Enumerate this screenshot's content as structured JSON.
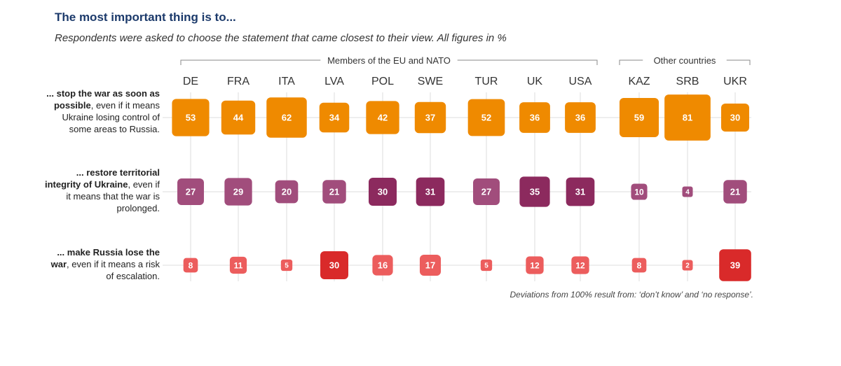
{
  "title": "The most important thing is to...",
  "subtitle": "Respondents were asked to choose the statement that came closest to their view. All figures in %",
  "note": "Deviations from 100% result from: ‘don’t know’ and ‘no response’.",
  "rows": [
    {
      "bold": "... stop the war as soon as possible",
      "rest": ", even if it means Ukraine losing control of some areas to Russia."
    },
    {
      "bold": "... restore territorial integrity of Ukraine",
      "rest": ", even if it means that the war is prolonged."
    },
    {
      "bold": "... make Russia lose the war",
      "rest": ", even if it means a risk of escalation."
    }
  ],
  "chart_data": {
    "type": "table",
    "groups": [
      {
        "label": "Members of the EU and NATO",
        "countries": [
          "DE",
          "FRA",
          "ITA",
          "LVA",
          "POL",
          "SWE",
          "TUR",
          "UK",
          "USA"
        ]
      },
      {
        "label": "Other countries",
        "countries": [
          "KAZ",
          "SRB",
          "UKR"
        ]
      }
    ],
    "categories": [
      "DE",
      "FRA",
      "ITA",
      "LVA",
      "POL",
      "SWE",
      "TUR",
      "UK",
      "USA",
      "KAZ",
      "SRB",
      "UKR"
    ],
    "series": [
      {
        "key": "stop_war",
        "values": [
          53,
          44,
          62,
          34,
          42,
          37,
          52,
          36,
          36,
          59,
          81,
          30
        ]
      },
      {
        "key": "restore_integrity",
        "values": [
          27,
          29,
          20,
          21,
          30,
          31,
          27,
          35,
          31,
          10,
          4,
          21
        ]
      },
      {
        "key": "russia_lose",
        "values": [
          8,
          11,
          5,
          30,
          16,
          17,
          5,
          12,
          12,
          8,
          2,
          39
        ]
      }
    ],
    "colors": {
      "stop_war": {
        "light": "#f3a13c",
        "dark": "#ef8a00"
      },
      "restore_integrity": {
        "light": "#a14d7c",
        "dark": "#8c2a5e"
      },
      "russia_lose": {
        "light": "#ec5d5d",
        "dark": "#d92a2a"
      }
    },
    "units": "%"
  }
}
